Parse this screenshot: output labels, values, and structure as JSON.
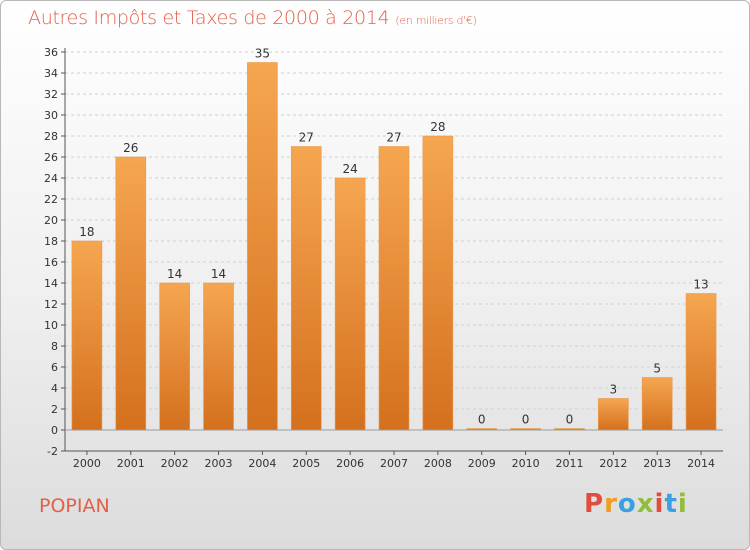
{
  "header": {
    "title": "Autres Impôts et Taxes de 2000 à 2014",
    "unit": "(en milliers d'€)"
  },
  "footer": {
    "place": "POPIAN",
    "logo_text": "Proxiti",
    "logo_colors": [
      "#e34b3c",
      "#f39c1d",
      "#3aa0e0",
      "#8fbe3a",
      "#e34b3c",
      "#3aa0e0",
      "#8fbe3a"
    ]
  },
  "colors": {
    "title": "#e35f48",
    "bar_light": "#f6a650",
    "bar_dark": "#d4701e",
    "axis": "#555555"
  },
  "chart_data": {
    "type": "bar",
    "title": "Autres Impôts et Taxes de 2000 à 2014",
    "subtitle": "(en milliers d'€)",
    "categories": [
      "2000",
      "2001",
      "2002",
      "2003",
      "2004",
      "2005",
      "2006",
      "2007",
      "2008",
      "2009",
      "2010",
      "2011",
      "2012",
      "2013",
      "2014"
    ],
    "values": [
      18,
      26,
      14,
      14,
      35,
      27,
      24,
      27,
      28,
      0,
      0,
      0,
      3,
      5,
      13
    ],
    "data_labels": [
      "18",
      "26",
      "14",
      "14",
      "35",
      "27",
      "24",
      "27",
      "28",
      "0",
      "0",
      "0",
      "3",
      "5",
      "13"
    ],
    "yticks": [
      "-2",
      "0",
      "2",
      "4",
      "6",
      "8",
      "10",
      "12",
      "14",
      "16",
      "18",
      "20",
      "22",
      "24",
      "26",
      "28",
      "30",
      "32",
      "34",
      "36"
    ],
    "ylim": [
      -2,
      36
    ],
    "grid": true
  }
}
